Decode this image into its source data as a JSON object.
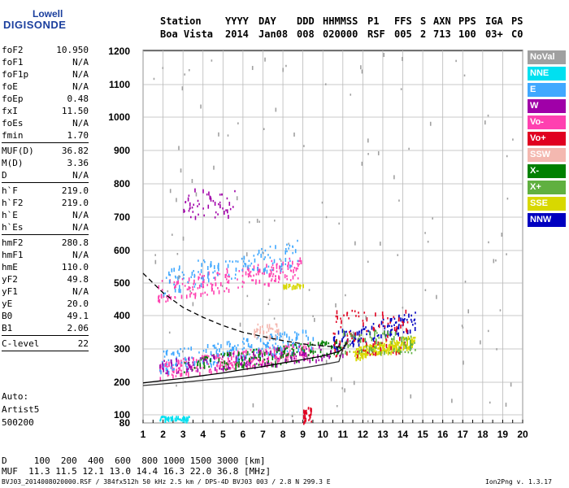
{
  "logo": {
    "line1": "Lowell",
    "line2": "DIGISONDE"
  },
  "header": {
    "label_station": "Station",
    "value_station": "Boa Vista",
    "columns": [
      {
        "label": "YYYY",
        "value": "2014"
      },
      {
        "label": "DAY",
        "value": "Jan08"
      },
      {
        "label": "DDD",
        "value": "008"
      },
      {
        "label": "HHMMSS",
        "value": "020000"
      },
      {
        "label": "P1",
        "value": "RSF"
      },
      {
        "label": "FFS",
        "value": "005"
      },
      {
        "label": "S",
        "value": "2"
      },
      {
        "label": "AXN",
        "value": "713"
      },
      {
        "label": "PPS",
        "value": "100"
      },
      {
        "label": "IGA",
        "value": "03+"
      },
      {
        "label": "PS",
        "value": "C0"
      }
    ]
  },
  "params": {
    "group1": [
      {
        "key": "foF2",
        "value": "10.950"
      },
      {
        "key": "foF1",
        "value": "N/A"
      },
      {
        "key": "foF1p",
        "value": "N/A"
      },
      {
        "key": "foE",
        "value": "N/A"
      },
      {
        "key": "foEp",
        "value": "0.48"
      },
      {
        "key": "fxI",
        "value": "11.50"
      },
      {
        "key": "foEs",
        "value": "N/A"
      },
      {
        "key": "fmin",
        "value": "1.70"
      }
    ],
    "group2": [
      {
        "key": "MUF(D)",
        "value": "36.82"
      },
      {
        "key": "M(D)",
        "value": "3.36"
      },
      {
        "key": "D",
        "value": "N/A"
      }
    ],
    "group3": [
      {
        "key": "h`F",
        "value": "219.0"
      },
      {
        "key": "h`F2",
        "value": "219.0"
      },
      {
        "key": "h`E",
        "value": "N/A"
      },
      {
        "key": "h`Es",
        "value": "N/A"
      }
    ],
    "group4": [
      {
        "key": "hmF2",
        "value": "280.8"
      },
      {
        "key": "hmF1",
        "value": "N/A"
      },
      {
        "key": "hmE",
        "value": "110.0"
      },
      {
        "key": "yF2",
        "value": "49.8"
      },
      {
        "key": "yF1",
        "value": "N/A"
      },
      {
        "key": "yE",
        "value": "20.0"
      },
      {
        "key": "B0",
        "value": "49.1"
      },
      {
        "key": "B1",
        "value": "2.06"
      }
    ],
    "group5": [
      {
        "key": "C-level",
        "value": "22"
      }
    ]
  },
  "auto": {
    "line1": "Auto:",
    "line2": "Artist5",
    "line3": "500200"
  },
  "muf_table": {
    "d_label": "D",
    "d_values": "100  200  400  600  800 1000 1500 3000 [km]",
    "muf_label": "MUF",
    "muf_values": "11.3 11.5 12.1 13.0 14.4 16.3 22.0 36.8 [MHz]"
  },
  "footer": {
    "left": "BVJ03_2014008020000.RSF / 384fx512h 50 kHz 2.5 km / DPS-4D BVJ03 003 / 2.8 N 299.3 E",
    "right": "Ion2Png v. 1.3.17"
  },
  "legend": [
    {
      "label": "NoVal",
      "color": "#a0a0a0"
    },
    {
      "label": "NNE",
      "color": "#00e0f0"
    },
    {
      "label": "E",
      "color": "#40a8ff"
    },
    {
      "label": "W",
      "color": "#a000a8"
    },
    {
      "label": "Vo-",
      "color": "#ff40b0"
    },
    {
      "label": "Vo+",
      "color": "#e00020"
    },
    {
      "label": "SSW",
      "color": "#f4b8b0"
    },
    {
      "label": "X-",
      "color": "#008000"
    },
    {
      "label": "X+",
      "color": "#60b040"
    },
    {
      "label": "SSE",
      "color": "#d8d800"
    },
    {
      "label": "NNW",
      "color": "#0000c0"
    }
  ],
  "chart_data": {
    "type": "scatter",
    "xlim": [
      1,
      20
    ],
    "ylim": [
      80,
      1200
    ],
    "x_ticks": [
      1,
      2,
      3,
      4,
      5,
      6,
      7,
      8,
      9,
      10,
      11,
      12,
      13,
      14,
      15,
      16,
      17,
      18,
      19,
      20
    ],
    "y_ticks": [
      80,
      100,
      200,
      300,
      400,
      500,
      600,
      700,
      800,
      900,
      1000,
      1100,
      1200
    ],
    "grid": true,
    "clusters": [
      {
        "name": "Vo-",
        "color": "#ff40b0",
        "x": [
          1.7,
          8.9
        ],
        "y": [
          440,
          580
        ],
        "count": 200
      },
      {
        "name": "E",
        "color": "#40a8ff",
        "x": [
          2.0,
          8.9
        ],
        "y": [
          470,
          630
        ],
        "count": 120
      },
      {
        "name": "Vo-",
        "color": "#ff40b0",
        "x": [
          1.8,
          9.5
        ],
        "y": [
          215,
          320
        ],
        "count": 260
      },
      {
        "name": "E",
        "color": "#40a8ff",
        "x": [
          1.8,
          9.5
        ],
        "y": [
          230,
          360
        ],
        "count": 200
      },
      {
        "name": "X-",
        "color": "#008000",
        "x": [
          3.0,
          11.0
        ],
        "y": [
          220,
          330
        ],
        "count": 160
      },
      {
        "name": "W",
        "color": "#a000a8",
        "x": [
          1.8,
          11.0
        ],
        "y": [
          220,
          320
        ],
        "count": 120
      },
      {
        "name": "SSE",
        "color": "#d8d800",
        "x": [
          11.5,
          14.6
        ],
        "y": [
          270,
          340
        ],
        "count": 220
      },
      {
        "name": "NNW",
        "color": "#0000c0",
        "x": [
          10.5,
          14.6
        ],
        "y": [
          300,
          410
        ],
        "count": 120
      },
      {
        "name": "Vo+",
        "color": "#e00020",
        "x": [
          10.5,
          14.3
        ],
        "y": [
          280,
          420
        ],
        "count": 100
      },
      {
        "name": "X+",
        "color": "#60b040",
        "x": [
          11.0,
          14.6
        ],
        "y": [
          290,
          360
        ],
        "count": 90
      },
      {
        "name": "NNE",
        "color": "#00e0f0",
        "x": [
          1.8,
          3.3
        ],
        "y": [
          88,
          98
        ],
        "count": 50
      },
      {
        "name": "W",
        "color": "#a000a8",
        "x": [
          3.0,
          5.6
        ],
        "y": [
          700,
          790
        ],
        "count": 50
      },
      {
        "name": "SSE",
        "color": "#d8d800",
        "x": [
          8.0,
          9.0
        ],
        "y": [
          490,
          500
        ],
        "count": 25
      },
      {
        "name": "SSW",
        "color": "#f4b8b0",
        "x": [
          6.5,
          7.8
        ],
        "y": [
          330,
          380
        ],
        "count": 40
      },
      {
        "name": "Vo+",
        "color": "#e00020",
        "x": [
          9.0,
          9.4
        ],
        "y": [
          80,
          130
        ],
        "count": 25
      },
      {
        "name": "NoVal",
        "color": "#a0a0a0",
        "x": [
          1.5,
          19.5
        ],
        "y": [
          80,
          1200
        ],
        "count": 130
      }
    ],
    "profile_solid": [
      [
        1,
        198
      ],
      [
        2,
        205
      ],
      [
        3,
        212
      ],
      [
        4,
        220
      ],
      [
        5,
        228
      ],
      [
        6,
        238
      ],
      [
        7,
        247
      ],
      [
        8,
        258
      ],
      [
        9,
        268
      ],
      [
        10,
        279
      ],
      [
        10.8,
        292
      ],
      [
        11,
        300
      ],
      [
        11.2,
        320
      ]
    ],
    "profile_solid2": [
      [
        1,
        190
      ],
      [
        2,
        195
      ],
      [
        3,
        200
      ],
      [
        4,
        206
      ],
      [
        5,
        212
      ],
      [
        6,
        218
      ],
      [
        7,
        226
      ],
      [
        8,
        234
      ],
      [
        9,
        243
      ],
      [
        10,
        253
      ],
      [
        10.8,
        262
      ],
      [
        11,
        300
      ],
      [
        11.2,
        315
      ]
    ],
    "profile_dashed": [
      [
        1,
        530
      ],
      [
        2,
        470
      ],
      [
        3,
        425
      ],
      [
        4,
        395
      ],
      [
        5,
        370
      ],
      [
        6,
        350
      ],
      [
        7,
        337
      ],
      [
        8,
        325
      ],
      [
        9,
        315
      ],
      [
        10,
        309
      ],
      [
        10.9,
        305
      ]
    ]
  }
}
